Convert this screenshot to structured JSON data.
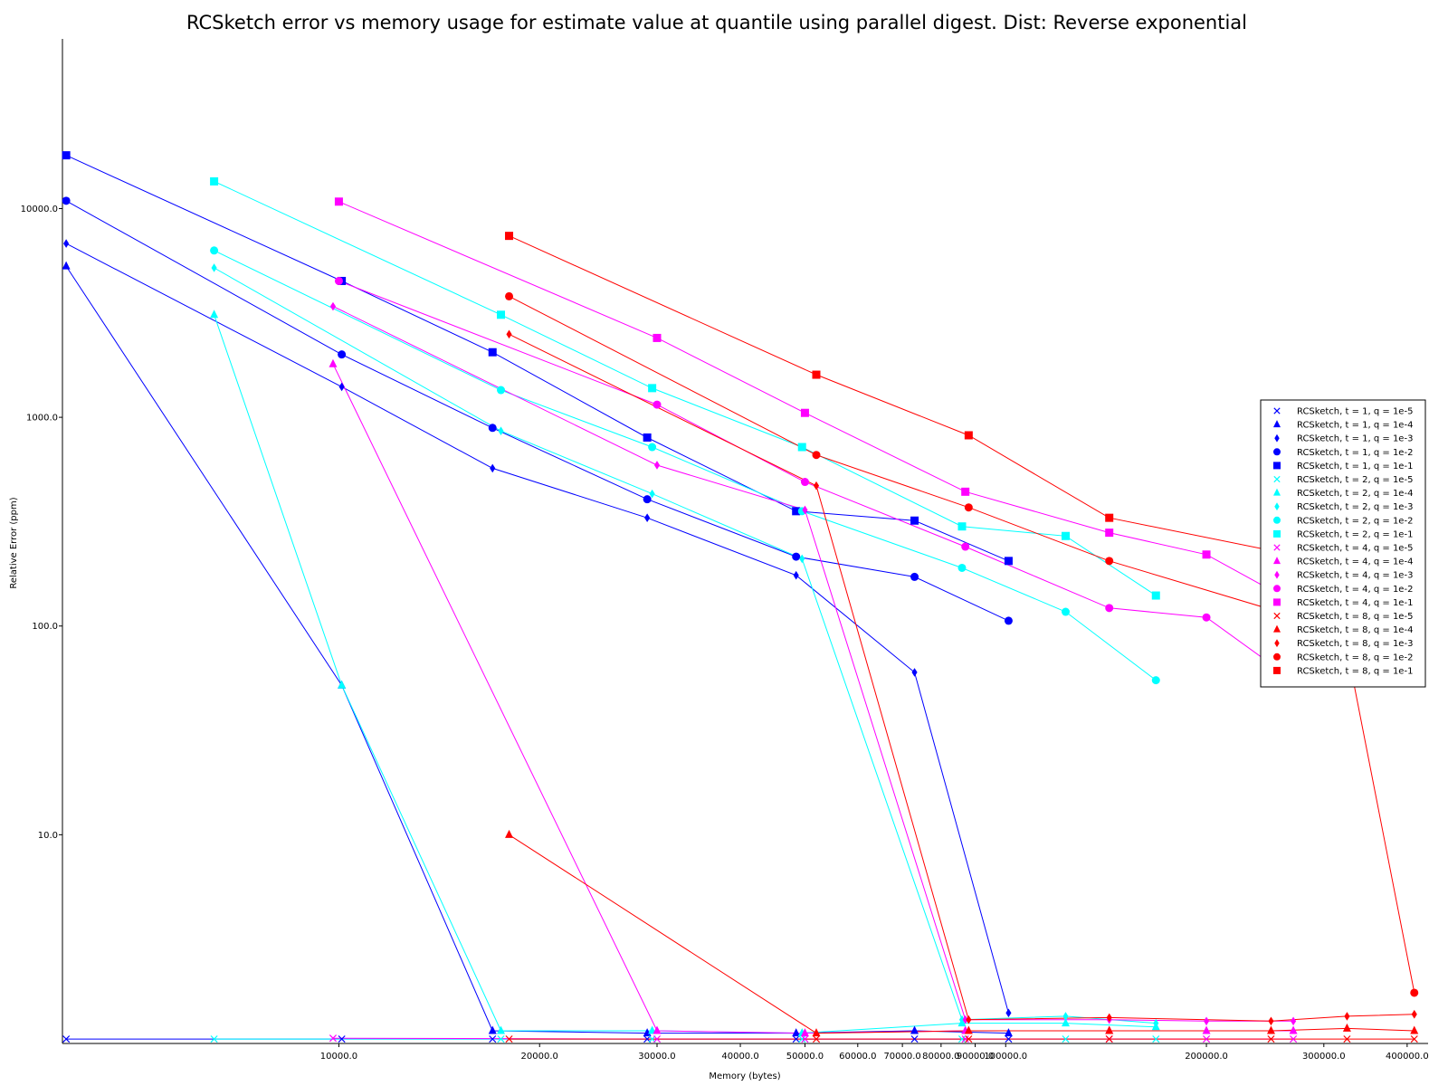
{
  "chart_data": {
    "type": "line",
    "title": "RCSketch error vs memory usage for estimate value at quantile using parallel digest. Dist: Reverse exponential",
    "xlabel": "Memory (bytes)",
    "ylabel": "Relative Error (ppm)",
    "xscale": "log",
    "yscale": "log",
    "xlim": [
      3850,
      430000
    ],
    "ylim": [
      1.0,
      65000
    ],
    "xticks": [
      {
        "value": 10000,
        "label": "10000.0"
      },
      {
        "value": 20000,
        "label": "20000.0"
      },
      {
        "value": 30000,
        "label": "30000.0"
      },
      {
        "value": 40000,
        "label": "40000.0"
      },
      {
        "value": 50000,
        "label": "50000.0"
      },
      {
        "value": 60000,
        "label": "60000.0"
      },
      {
        "value": 70000,
        "label": "70000.0"
      },
      {
        "value": 80000,
        "label": "80000.0"
      },
      {
        "value": 90000,
        "label": "90000.0"
      },
      {
        "value": 100000,
        "label": "100000.0"
      },
      {
        "value": 200000,
        "label": "200000.0"
      },
      {
        "value": 300000,
        "label": "300000.0"
      },
      {
        "value": 400000,
        "label": "400000.0"
      }
    ],
    "yticks": [
      {
        "value": 10,
        "label": "10.0"
      },
      {
        "value": 100,
        "label": "100.0"
      },
      {
        "value": 1000,
        "label": "1000.0"
      },
      {
        "value": 10000,
        "label": "10000.0"
      }
    ],
    "grid": false,
    "legend_position": "right",
    "series": [
      {
        "name": "RCSketch, t = 1, q = 1e-5",
        "color": "#0000ff",
        "marker": "x",
        "x": [
          3900,
          10100,
          17000,
          29000,
          48500,
          73000,
          101000
        ],
        "y": [
          1.05,
          1.05,
          1.05,
          1.05,
          1.05,
          1.05,
          1.05
        ]
      },
      {
        "name": "RCSketch, t = 1, q = 1e-4",
        "color": "#0000ff",
        "marker": "triangle",
        "x": [
          3900,
          10100,
          17000,
          29000,
          48500,
          73000,
          101000
        ],
        "y": [
          5300,
          52,
          1.15,
          1.12,
          1.12,
          1.15,
          1.12
        ]
      },
      {
        "name": "RCSketch, t = 1, q = 1e-3",
        "color": "#0000ff",
        "marker": "diamond",
        "x": [
          3900,
          10100,
          17000,
          29000,
          48500,
          73000,
          101000
        ],
        "y": [
          6800,
          1400,
          570,
          330,
          175,
          60,
          1.4
        ]
      },
      {
        "name": "RCSketch, t = 1, q = 1e-2",
        "color": "#0000ff",
        "marker": "circle",
        "x": [
          3900,
          10100,
          17000,
          29000,
          48500,
          73000,
          101000
        ],
        "y": [
          10900,
          2000,
          890,
          405,
          215,
          172,
          106
        ]
      },
      {
        "name": "RCSketch, t = 1, q = 1e-1",
        "color": "#0000ff",
        "marker": "square",
        "x": [
          3900,
          10100,
          17000,
          29000,
          48500,
          73000,
          101000
        ],
        "y": [
          18000,
          4500,
          2050,
          800,
          355,
          320,
          205
        ]
      },
      {
        "name": "RCSketch, t = 2, q = 1e-5",
        "color": "#00ffff",
        "marker": "x",
        "x": [
          6500,
          17500,
          29500,
          49500,
          86000,
          123000,
          168000
        ],
        "y": [
          1.05,
          1.05,
          1.05,
          1.05,
          1.05,
          1.05,
          1.05
        ]
      },
      {
        "name": "RCSketch, t = 2, q = 1e-4",
        "color": "#00ffff",
        "marker": "triangle",
        "x": [
          6500,
          10100,
          17500,
          29500,
          49500,
          86000,
          123000,
          168000
        ],
        "y": [
          3100,
          52,
          1.15,
          1.15,
          1.12,
          1.25,
          1.25,
          1.2
        ]
      },
      {
        "name": "RCSketch, t = 2, q = 1e-3",
        "color": "#00ffff",
        "marker": "diamond",
        "x": [
          6500,
          17500,
          29500,
          49500,
          86000,
          123000,
          168000
        ],
        "y": [
          5200,
          860,
          430,
          210,
          1.3,
          1.35,
          1.25
        ]
      },
      {
        "name": "RCSketch, t = 2, q = 1e-2",
        "color": "#00ffff",
        "marker": "circle",
        "x": [
          6500,
          17500,
          29500,
          49500,
          86000,
          123000,
          168000
        ],
        "y": [
          6300,
          1350,
          720,
          355,
          190,
          117,
          55
        ]
      },
      {
        "name": "RCSketch, t = 2, q = 1e-1",
        "color": "#00ffff",
        "marker": "square",
        "x": [
          6500,
          17500,
          29500,
          49500,
          86000,
          123000,
          168000
        ],
        "y": [
          13500,
          3100,
          1380,
          720,
          300,
          270,
          140
        ]
      },
      {
        "name": "RCSketch, t = 4, q = 1e-5",
        "color": "#ff00ff",
        "marker": "x",
        "x": [
          9800,
          30000,
          50000,
          87000,
          143000,
          200000,
          270000
        ],
        "y": [
          1.06,
          1.05,
          1.05,
          1.05,
          1.05,
          1.05,
          1.05
        ]
      },
      {
        "name": "RCSketch, t = 4, q = 1e-4",
        "color": "#ff00ff",
        "marker": "triangle",
        "x": [
          9800,
          30000,
          50000,
          87000,
          143000,
          200000,
          270000
        ],
        "y": [
          1800,
          1.15,
          1.12,
          1.15,
          1.15,
          1.15,
          1.15
        ]
      },
      {
        "name": "RCSketch, t = 4, q = 1e-3",
        "color": "#ff00ff",
        "marker": "diamond",
        "x": [
          9800,
          30000,
          50000,
          87000,
          143000,
          200000,
          270000
        ],
        "y": [
          3400,
          590,
          360,
          1.3,
          1.3,
          1.28,
          1.28
        ]
      },
      {
        "name": "RCSketch, t = 4, q = 1e-2",
        "color": "#ff00ff",
        "marker": "circle",
        "x": [
          10000,
          30000,
          50000,
          87000,
          143000,
          200000,
          270000
        ],
        "y": [
          4500,
          1150,
          490,
          240,
          122,
          110,
          55
        ]
      },
      {
        "name": "RCSketch, t = 4, q = 1e-1",
        "color": "#ff00ff",
        "marker": "square",
        "x": [
          10000,
          30000,
          50000,
          87000,
          143000,
          200000,
          270000
        ],
        "y": [
          10800,
          2400,
          1050,
          440,
          280,
          220,
          130
        ]
      },
      {
        "name": "RCSketch, t = 8, q = 1e-5",
        "color": "#ff0000",
        "marker": "x",
        "x": [
          18000,
          52000,
          88000,
          143000,
          250000,
          325000,
          410000
        ],
        "y": [
          1.05,
          1.05,
          1.05,
          1.05,
          1.05,
          1.05,
          1.05
        ]
      },
      {
        "name": "RCSketch, t = 8, q = 1e-4",
        "color": "#ff0000",
        "marker": "triangle",
        "x": [
          18000,
          52000,
          88000,
          143000,
          250000,
          325000,
          410000
        ],
        "y": [
          10,
          1.12,
          1.15,
          1.15,
          1.15,
          1.18,
          1.15
        ]
      },
      {
        "name": "RCSketch, t = 8, q = 1e-3",
        "color": "#ff0000",
        "marker": "diamond",
        "x": [
          18000,
          52000,
          88000,
          143000,
          250000,
          325000,
          410000
        ],
        "y": [
          2500,
          470,
          1.3,
          1.33,
          1.28,
          1.35,
          1.38
        ]
      },
      {
        "name": "RCSketch, t = 8, q = 1e-2",
        "color": "#ff0000",
        "marker": "circle",
        "x": [
          18000,
          52000,
          88000,
          143000,
          250000,
          325000,
          410000
        ],
        "y": [
          3800,
          660,
          370,
          205,
          120,
          78,
          1.75
        ]
      },
      {
        "name": "RCSketch, t = 8, q = 1e-1",
        "color": "#ff0000",
        "marker": "square",
        "x": [
          18000,
          52000,
          88000,
          143000,
          250000,
          325000,
          410000
        ],
        "y": [
          7400,
          1600,
          820,
          330,
          230,
          115,
          80
        ]
      }
    ]
  }
}
